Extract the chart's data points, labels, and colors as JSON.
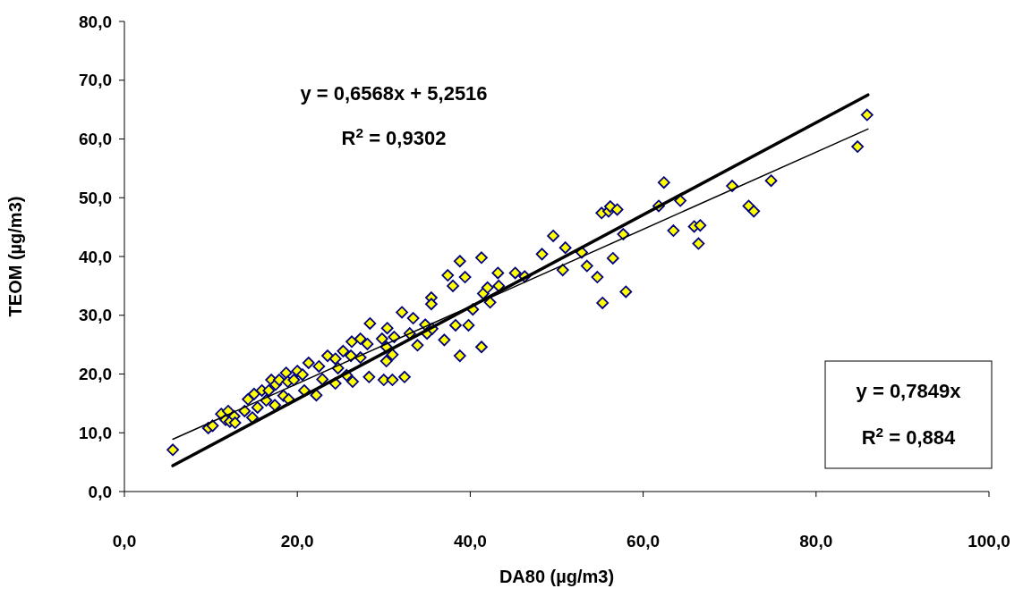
{
  "chart_data": {
    "type": "scatter",
    "xlabel": "DA80 (µg/m3)",
    "ylabel": "TEOM (µg/m3)",
    "xlim": [
      0,
      100
    ],
    "ylim": [
      0,
      80
    ],
    "xticks": [
      {
        "value": 0,
        "label": "0,0"
      },
      {
        "value": 20,
        "label": "20,0"
      },
      {
        "value": 40,
        "label": "40,0"
      },
      {
        "value": 60,
        "label": "60,0"
      },
      {
        "value": 80,
        "label": "80,0"
      },
      {
        "value": 100,
        "label": "100,0"
      }
    ],
    "yticks": [
      {
        "value": 0,
        "label": "0,0"
      },
      {
        "value": 10,
        "label": "10,0"
      },
      {
        "value": 20,
        "label": "20,0"
      },
      {
        "value": 30,
        "label": "30,0"
      },
      {
        "value": 40,
        "label": "40,0"
      },
      {
        "value": 50,
        "label": "50,0"
      },
      {
        "value": 60,
        "label": "60,0"
      },
      {
        "value": 70,
        "label": "70,0"
      },
      {
        "value": 80,
        "label": "80,0"
      }
    ],
    "annotations": [
      "y = 0,6568x + 5,2516",
      "R$^{2}$ = 0,9302",
      "y = 0,7849x",
      "R$^{2}$ = 0,884"
    ],
    "series": [
      {
        "marker": "diamond",
        "color": "#ffff00",
        "x": [
          5.6,
          9.7,
          10.2,
          11.2,
          12.0,
          11.7,
          12.2,
          12.7,
          12.8,
          13.9,
          14.3,
          14.8,
          15.0,
          15.4,
          15.9,
          16.4,
          16.7,
          17.0,
          17.4,
          17.5,
          17.9,
          18.4,
          18.7,
          19.0,
          18.9,
          19.6,
          20.0,
          20.6,
          20.8,
          21.3,
          22.2,
          22.5,
          22.9,
          23.5,
          24.4,
          24.4,
          24.7,
          25.3,
          25.7,
          26.2,
          26.4,
          26.3,
          28.4,
          27.3,
          28.1,
          27.3,
          28.3,
          29.8,
          30.3,
          30.4,
          31.2,
          31.0,
          30.3,
          30.0,
          31.0,
          32.4,
          32.1,
          33.4,
          33.0,
          33.9,
          34.8,
          35.0,
          35.6,
          35.5,
          35.5,
          37.0,
          37.4,
          38.0,
          38.8,
          39.4,
          38.3,
          39.8,
          38.8,
          40.3,
          41.3,
          41.3,
          41.5,
          42.0,
          42.3,
          43.2,
          43.3,
          45.2,
          46.3,
          48.3,
          49.6,
          50.7,
          51.0,
          52.9,
          53.5,
          54.7,
          56.5,
          55.3,
          85.9,
          84.8,
          62.4,
          70.3,
          74.8,
          64.3,
          61.8,
          55.2,
          56.0,
          56.2,
          57.0,
          72.2,
          72.8,
          57.7,
          63.5,
          65.9,
          66.6,
          66.4,
          58.0
        ],
        "values": [
          7.1,
          10.8,
          11.2,
          13.2,
          13.7,
          12.2,
          11.9,
          12.8,
          11.7,
          13.7,
          15.7,
          12.6,
          16.6,
          14.3,
          17.2,
          15.5,
          17.2,
          19.0,
          14.7,
          18.2,
          19.0,
          16.3,
          20.2,
          15.7,
          18.7,
          19.0,
          20.5,
          19.9,
          17.2,
          21.9,
          16.4,
          21.3,
          19.1,
          23.1,
          18.4,
          22.6,
          21.0,
          23.9,
          19.8,
          23.1,
          18.7,
          25.5,
          28.6,
          26.0,
          25.1,
          22.8,
          19.5,
          26.0,
          24.6,
          27.8,
          26.3,
          23.3,
          22.2,
          19.0,
          19.0,
          19.5,
          30.5,
          29.5,
          26.9,
          24.9,
          28.4,
          26.9,
          27.7,
          33.0,
          31.9,
          25.8,
          36.8,
          35.0,
          39.2,
          36.5,
          28.3,
          28.3,
          23.1,
          31.0,
          39.8,
          24.6,
          33.7,
          34.7,
          32.2,
          37.2,
          35.0,
          37.2,
          36.6,
          40.4,
          43.5,
          37.7,
          41.5,
          40.7,
          38.4,
          36.5,
          39.7,
          32.1,
          64.1,
          58.7,
          52.6,
          52.0,
          52.9,
          49.5,
          48.6,
          47.4,
          47.7,
          48.5,
          48.0,
          48.6,
          47.7,
          43.8,
          44.4,
          45.1,
          45.3,
          42.2,
          34.0
        ]
      },
      {
        "type": "line",
        "color": "#000000",
        "x": [
          5.6,
          86
        ],
        "values": [
          8.9,
          61.7
        ],
        "marker": "none"
      },
      {
        "type": "line",
        "color": "#000000",
        "x": [
          5.6,
          86
        ],
        "values": [
          4.4,
          67.5
        ],
        "marker": "none"
      }
    ]
  }
}
